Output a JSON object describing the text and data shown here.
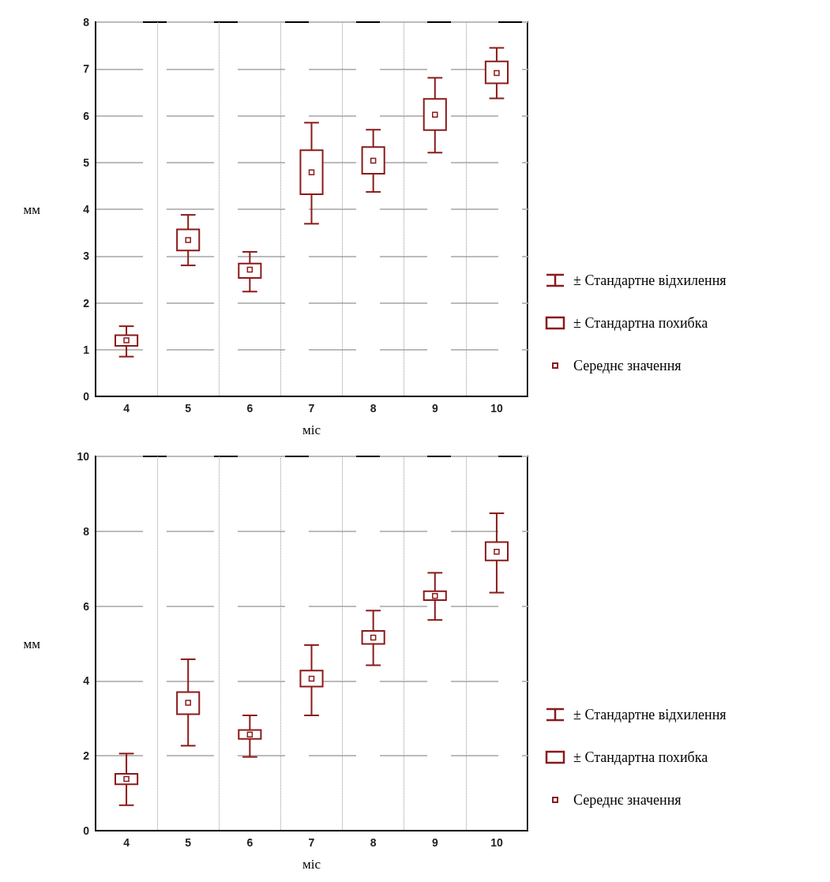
{
  "chart_data": [
    {
      "type": "box",
      "xlabel": "міс",
      "ylabel": "мм",
      "categories": [
        "4",
        "5",
        "6",
        "7",
        "8",
        "9",
        "10"
      ],
      "ylim": [
        0,
        8
      ],
      "yticks": [
        0,
        1,
        2,
        3,
        4,
        5,
        6,
        7,
        8
      ],
      "grid": true,
      "series": [
        {
          "color": "#8b1a1a",
          "boxes": [
            {
              "low": 0.85,
              "q1": 1.08,
              "median": 1.2,
              "q3": 1.31,
              "high": 1.5
            },
            {
              "low": 2.8,
              "q1": 3.12,
              "median": 3.34,
              "q3": 3.57,
              "high": 3.88
            },
            {
              "low": 2.24,
              "q1": 2.53,
              "median": 2.71,
              "q3": 2.84,
              "high": 3.09
            },
            {
              "low": 3.69,
              "q1": 4.32,
              "median": 4.79,
              "q3": 5.26,
              "high": 5.85
            },
            {
              "low": 4.37,
              "q1": 4.76,
              "median": 5.04,
              "q3": 5.33,
              "high": 5.7
            },
            {
              "low": 5.21,
              "q1": 5.69,
              "median": 6.02,
              "q3": 6.36,
              "high": 6.81
            },
            {
              "low": 6.37,
              "q1": 6.69,
              "median": 6.91,
              "q3": 7.16,
              "high": 7.45
            }
          ]
        }
      ],
      "annotations": [
        "± Стандартне відхилення",
        "± Стандартна похибка",
        "Середнє значення"
      ]
    },
    {
      "type": "box",
      "xlabel": "міс",
      "ylabel": "мм",
      "categories": [
        "4",
        "5",
        "6",
        "7",
        "8",
        "9",
        "10"
      ],
      "ylim": [
        0,
        10
      ],
      "yticks": [
        0,
        2,
        4,
        6,
        8,
        10
      ],
      "grid": true,
      "series": [
        {
          "color": "#8b1a1a",
          "boxes": [
            {
              "low": 0.68,
              "q1": 1.24,
              "median": 1.38,
              "q3": 1.52,
              "high": 2.06
            },
            {
              "low": 2.27,
              "q1": 3.11,
              "median": 3.42,
              "q3": 3.7,
              "high": 4.58
            },
            {
              "low": 1.97,
              "q1": 2.45,
              "median": 2.57,
              "q3": 2.69,
              "high": 3.08
            },
            {
              "low": 3.08,
              "q1": 3.85,
              "median": 4.06,
              "q3": 4.28,
              "high": 4.96
            },
            {
              "low": 4.42,
              "q1": 4.99,
              "median": 5.16,
              "q3": 5.34,
              "high": 5.88
            },
            {
              "low": 5.63,
              "q1": 6.16,
              "median": 6.27,
              "q3": 6.4,
              "high": 6.89
            },
            {
              "low": 6.36,
              "q1": 7.22,
              "median": 7.45,
              "q3": 7.71,
              "high": 8.48
            }
          ]
        }
      ],
      "annotations": [
        "± Стандартне відхилення",
        "± Стандартна похибка",
        "Середнє значення"
      ]
    }
  ]
}
